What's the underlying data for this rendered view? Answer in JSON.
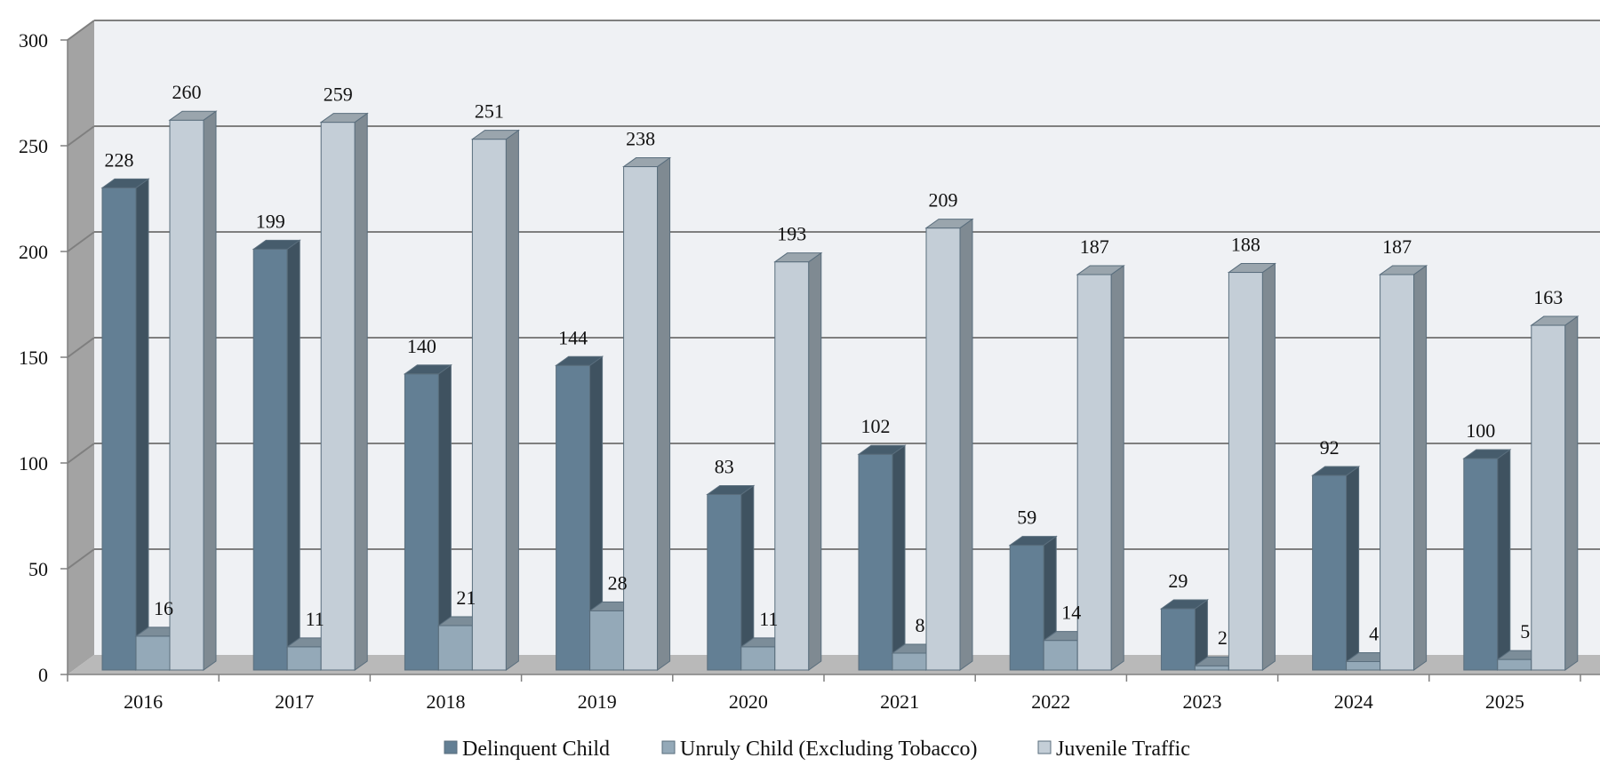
{
  "chart_data": {
    "type": "bar",
    "categories": [
      "2016",
      "2017",
      "2018",
      "2019",
      "2020",
      "2021",
      "2022",
      "2023",
      "2024",
      "2025"
    ],
    "series": [
      {
        "name": "Delinquent Child",
        "values": [
          228,
          199,
          140,
          144,
          83,
          102,
          59,
          29,
          92,
          100
        ]
      },
      {
        "name": "Unruly Child (Excluding Tobacco)",
        "values": [
          16,
          11,
          21,
          28,
          11,
          8,
          14,
          2,
          4,
          5
        ]
      },
      {
        "name": "Juvenile Traffic",
        "values": [
          260,
          259,
          251,
          238,
          193,
          209,
          187,
          188,
          187,
          163
        ]
      }
    ],
    "ylim": [
      0,
      300
    ],
    "yticks": [
      0,
      50,
      100,
      150,
      200,
      250,
      300
    ],
    "grid": true,
    "legend_position": "bottom",
    "style": "3d-clustered-column",
    "colors": {
      "series": [
        "#637f94",
        "#94a9b8",
        "#c4ced7"
      ],
      "series_side": [
        "#3f5260",
        "#6b7d8a",
        "#7f8a92"
      ],
      "series_top": [
        "#465c6c",
        "#7c8d99",
        "#9aa5ad"
      ],
      "back_wall": "#eff1f4",
      "side_wall": "#a3a3a3",
      "floor": "#b9b9b9",
      "gridline": "#7f7f7f",
      "bar_edge": "#5a6e7d"
    }
  }
}
